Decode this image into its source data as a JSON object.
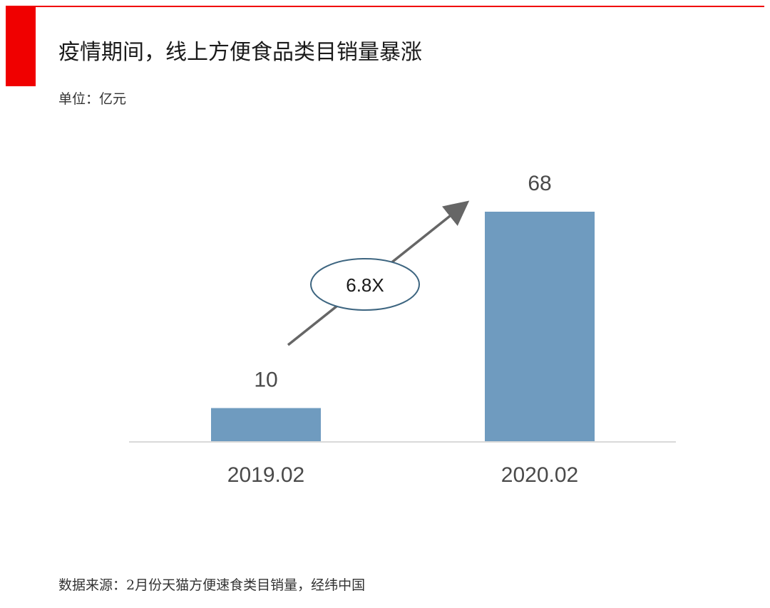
{
  "header": {
    "title": "疫情期间，线上方便食品类目销量暴涨",
    "unit": "单位：亿元",
    "accent_color": "#f00000"
  },
  "footer": {
    "source": "数据来源：2月份天猫方便速食类目销量，经纬中国"
  },
  "annotation": {
    "growth_label": "6.8X",
    "arrow_color": "#666666"
  },
  "chart_data": {
    "type": "bar",
    "categories": [
      "2019.02",
      "2020.02"
    ],
    "values": [
      10,
      68
    ],
    "bar_color": "#6f9bbf",
    "ylim": [
      0,
      68
    ],
    "grid": false,
    "data_labels": true
  }
}
